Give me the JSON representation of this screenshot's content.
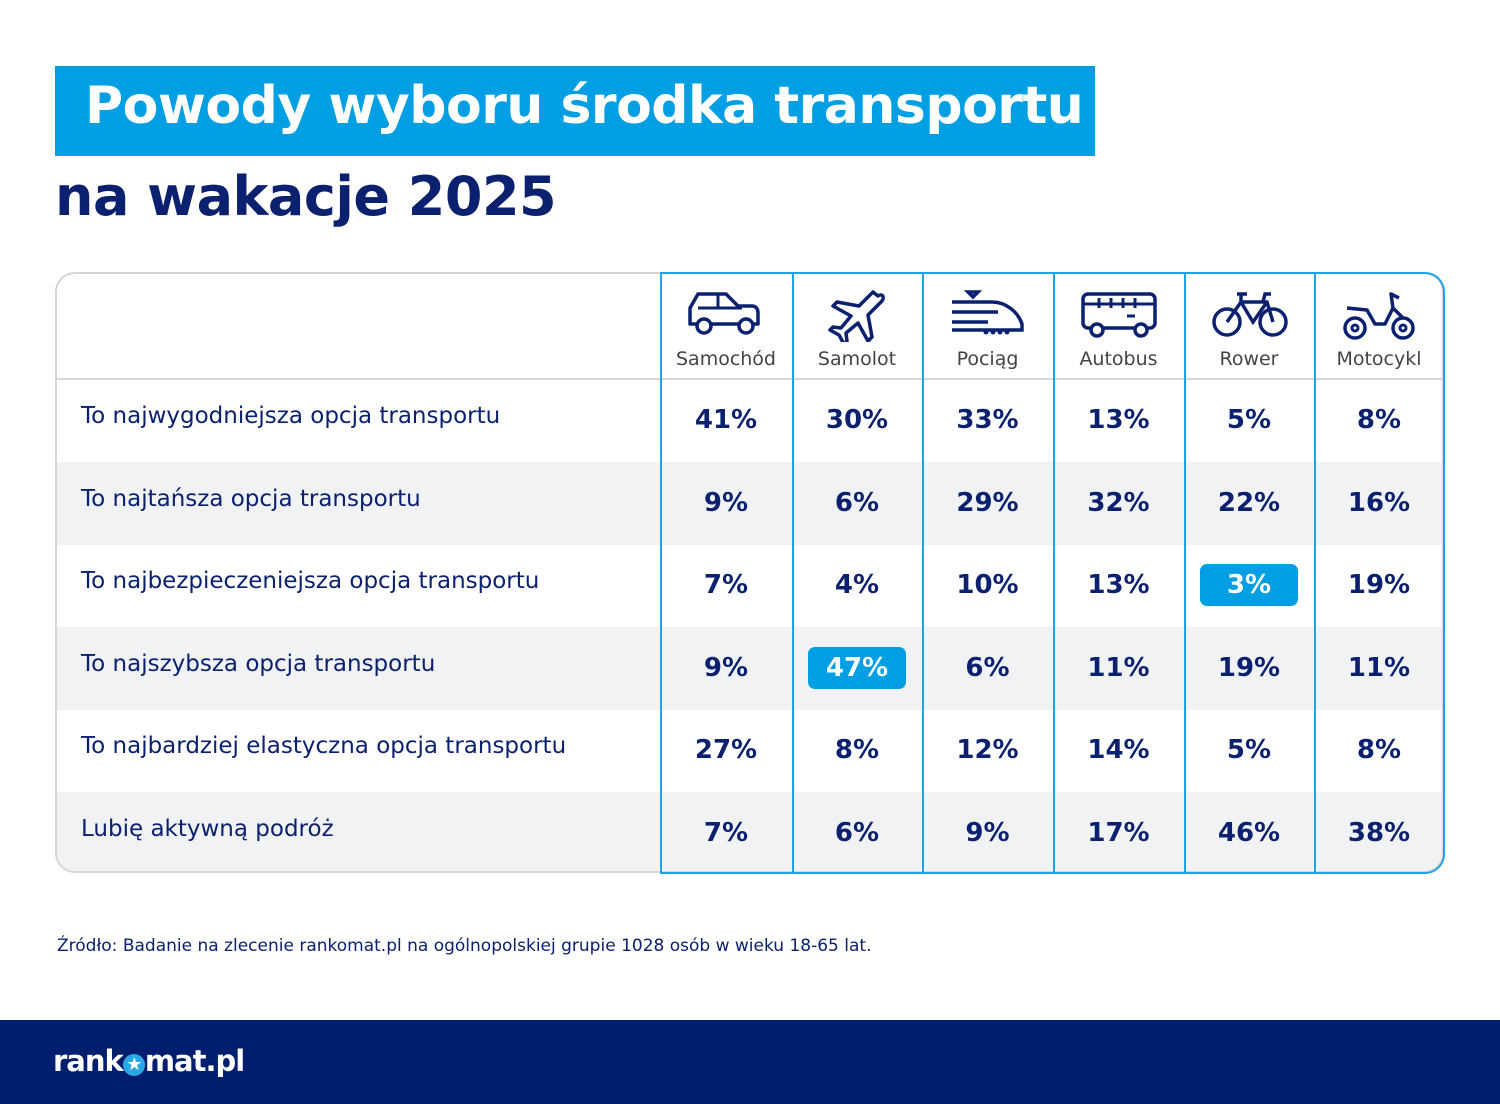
{
  "title": "Powody wyboru środka transportu",
  "subtitle": "na wakacje 2025",
  "colors": {
    "accent": "#009fe3",
    "navy": "#0b2170",
    "footer": "#001e6e"
  },
  "chart_data": {
    "type": "table",
    "columns": [
      {
        "label": "Samochód",
        "icon": "car-icon"
      },
      {
        "label": "Samolot",
        "icon": "airplane-icon"
      },
      {
        "label": "Pociąg",
        "icon": "train-icon"
      },
      {
        "label": "Autobus",
        "icon": "bus-icon"
      },
      {
        "label": "Rower",
        "icon": "bicycle-icon"
      },
      {
        "label": "Motocykl",
        "icon": "motorcycle-icon"
      }
    ],
    "rows": [
      {
        "label": "To najwygodniejsza opcja transportu",
        "values": [
          "41%",
          "30%",
          "33%",
          "13%",
          "5%",
          "8%"
        ]
      },
      {
        "label": "To najtańsza opcja transportu",
        "values": [
          "9%",
          "6%",
          "29%",
          "32%",
          "22%",
          "16%"
        ]
      },
      {
        "label": "To najbezpieczeniejsza opcja transportu",
        "values": [
          "7%",
          "4%",
          "10%",
          "13%",
          "3%",
          "19%"
        ]
      },
      {
        "label": "To najszybsza opcja transportu",
        "values": [
          "9%",
          "47%",
          "6%",
          "11%",
          "19%",
          "11%"
        ]
      },
      {
        "label": "To najbardziej elastyczna opcja transportu",
        "values": [
          "27%",
          "8%",
          "12%",
          "14%",
          "5%",
          "8%"
        ]
      },
      {
        "label": "Lubię aktywną podróż",
        "values": [
          "7%",
          "6%",
          "9%",
          "17%",
          "46%",
          "38%"
        ]
      }
    ],
    "highlighted": [
      {
        "row": 2,
        "col": 4
      },
      {
        "row": 3,
        "col": 1
      }
    ]
  },
  "source": "Źródło:  Badanie na zlecenie rankomat.pl na ogólnopolskiej grupie 1028 osób w wieku 18-65 lat.",
  "logo": "rankomat.pl"
}
